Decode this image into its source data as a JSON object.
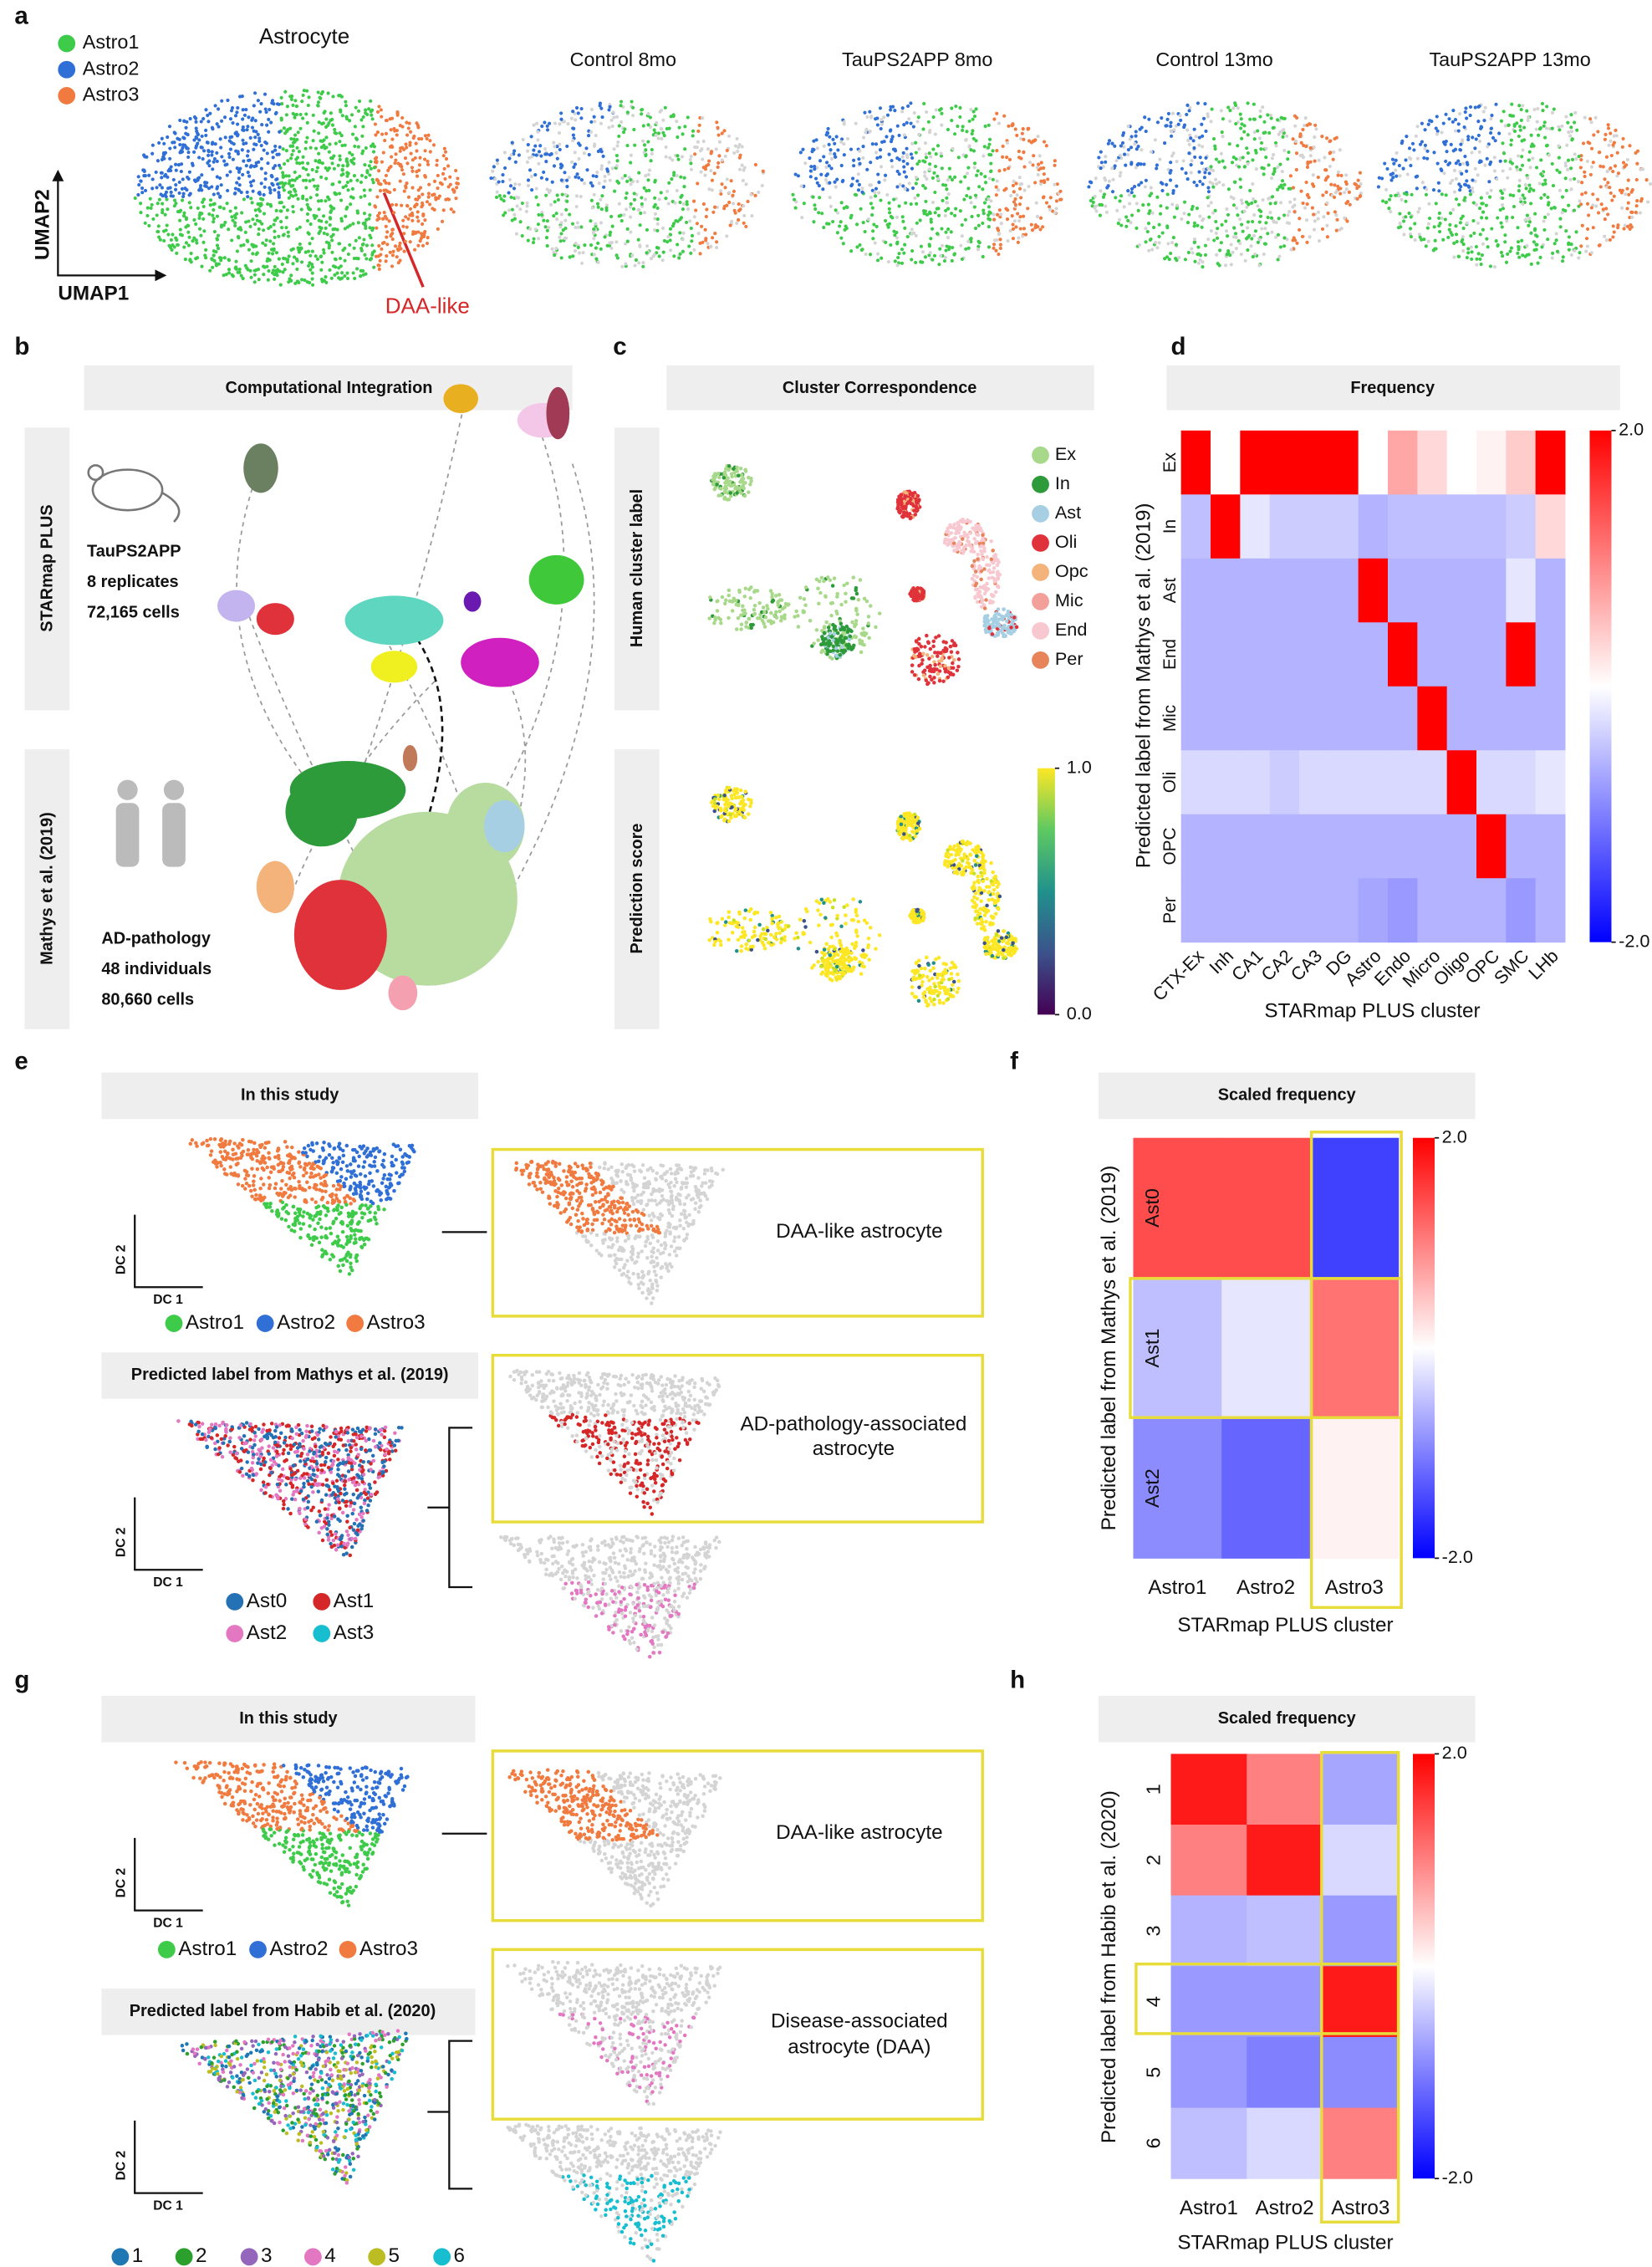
{
  "panels": {
    "a": {
      "letter": "a",
      "title": "Astrocyte",
      "legend": [
        {
          "name": "Astro1",
          "color": "#3ecb4a"
        },
        {
          "name": "Astro2",
          "color": "#2f6fd6"
        },
        {
          "name": "Astro3",
          "color": "#f07a3f"
        }
      ],
      "axis_x": "UMAP1",
      "axis_y": "UMAP2",
      "annotation": "DAA-like",
      "subplots": [
        "Control 8mo",
        "TauPS2APP 8mo",
        "Control 13mo",
        "TauPS2APP 13mo"
      ]
    },
    "b": {
      "letter": "b",
      "header": "Computational Integration",
      "side_labels": [
        "STARmap PLUS",
        "Mathys et al. (2019)"
      ],
      "mouse": [
        "TauPS2APP",
        "8 replicates",
        "72,165 cells"
      ],
      "human": [
        "AD-pathology",
        "48 individuals",
        "80,660 cells"
      ]
    },
    "c": {
      "letter": "c",
      "header": "Cluster Correspondence",
      "side_labels": [
        "Human cluster label",
        "Prediction score"
      ],
      "legend": [
        {
          "name": "Ex",
          "color": "#a8d98a"
        },
        {
          "name": "In",
          "color": "#2e9b3a"
        },
        {
          "name": "Ast",
          "color": "#a6cfe3"
        },
        {
          "name": "Oli",
          "color": "#e0323a"
        },
        {
          "name": "Opc",
          "color": "#f4b37a"
        },
        {
          "name": "Mic",
          "color": "#f4a09a"
        },
        {
          "name": "End",
          "color": "#f8c8d0"
        },
        {
          "name": "Per",
          "color": "#e8845a"
        }
      ],
      "colorbar_colors": [
        "#440154",
        "#3b528b",
        "#21918c",
        "#5ec962",
        "#fde725"
      ],
      "colorbar_ticks": [
        {
          "value": 1,
          "label": "1.0"
        },
        {
          "value": 0,
          "label": "0.0"
        }
      ]
    },
    "e": {
      "letter": "e",
      "header": "In this study",
      "header2": "Predicted label from Mathys et al. (2019)",
      "axis_x": "DC 1",
      "axis_y": "DC 2",
      "legend": [
        {
          "name": "Astro1",
          "color": "#3ecb4a"
        },
        {
          "name": "Astro2",
          "color": "#2f6fd6"
        },
        {
          "name": "Astro3",
          "color": "#f07a3f"
        }
      ],
      "legend2": [
        {
          "name": "Ast0",
          "color": "#2471b5"
        },
        {
          "name": "Ast1",
          "color": "#d62728"
        },
        {
          "name": "Ast2",
          "color": "#e377c2"
        },
        {
          "name": "Ast3",
          "color": "#17becf"
        }
      ],
      "box1": [
        "DAA-like astrocyte"
      ],
      "box2": [
        "AD-pathology-associated",
        "astrocyte"
      ]
    },
    "g": {
      "letter": "g",
      "header": "In this study",
      "header2": "Predicted label from Habib et al. (2020)",
      "axis_x": "DC 1",
      "axis_y": "DC 2",
      "legend": [
        {
          "name": "Astro1",
          "color": "#3ecb4a"
        },
        {
          "name": "Astro2",
          "color": "#2f6fd6"
        },
        {
          "name": "Astro3",
          "color": "#f07a3f"
        }
      ],
      "legend2": [
        {
          "name": "1",
          "color": "#1f77b4"
        },
        {
          "name": "2",
          "color": "#2ca02c"
        },
        {
          "name": "3",
          "color": "#9467bd"
        },
        {
          "name": "4",
          "color": "#e377c2"
        },
        {
          "name": "5",
          "color": "#bcbd22"
        },
        {
          "name": "6",
          "color": "#17becf"
        }
      ],
      "box1": [
        "DAA-like astrocyte"
      ],
      "box2": [
        "Disease-associated",
        "astrocyte (DAA)"
      ]
    }
  },
  "chart_data": [
    {
      "type": "heatmap",
      "letter": "d",
      "title": "Frequency",
      "x_label": "STARmap PLUS cluster",
      "y_label": "Predicted label from Mathys et al. (2019)",
      "categories": [
        "CTX-Ex",
        "Inh",
        "CA1",
        "CA2",
        "CA3",
        "DG",
        "Astro",
        "Endo",
        "Micro",
        "Oligo",
        "OPC",
        "SMC",
        "LHb"
      ],
      "rows": [
        "Ex",
        "In",
        "Ast",
        "End",
        "Mic",
        "Oli",
        "OPC",
        "Per"
      ],
      "values": [
        [
          2,
          0,
          2,
          2,
          2,
          2,
          0,
          0.7,
          0.3,
          0,
          0.1,
          0.4,
          2
        ],
        [
          -0.5,
          2,
          -0.2,
          -0.4,
          -0.4,
          -0.4,
          -0.6,
          -0.5,
          -0.5,
          -0.5,
          -0.5,
          -0.4,
          0.3
        ],
        [
          -0.6,
          -0.6,
          -0.6,
          -0.6,
          -0.6,
          -0.6,
          2,
          -0.6,
          -0.6,
          -0.6,
          -0.6,
          -0.2,
          -0.6
        ],
        [
          -0.6,
          -0.6,
          -0.6,
          -0.6,
          -0.6,
          -0.6,
          -0.6,
          2,
          -0.6,
          -0.6,
          -0.6,
          2,
          -0.6
        ],
        [
          -0.6,
          -0.6,
          -0.6,
          -0.6,
          -0.6,
          -0.6,
          -0.6,
          -0.6,
          2,
          -0.6,
          -0.6,
          -0.6,
          -0.6
        ],
        [
          -0.3,
          -0.3,
          -0.3,
          -0.4,
          -0.3,
          -0.3,
          -0.3,
          -0.3,
          -0.3,
          2,
          -0.3,
          -0.3,
          -0.2
        ],
        [
          -0.6,
          -0.6,
          -0.6,
          -0.6,
          -0.6,
          -0.6,
          -0.6,
          -0.6,
          -0.6,
          -0.6,
          2,
          -0.6,
          -0.6
        ],
        [
          -0.6,
          -0.6,
          -0.6,
          -0.6,
          -0.6,
          -0.6,
          -0.7,
          -0.8,
          -0.6,
          -0.6,
          -0.6,
          -0.8,
          -0.6
        ]
      ],
      "zlim": [
        -2,
        2
      ],
      "zticks": [
        {
          "value": 2,
          "label": "2.0"
        },
        {
          "value": -2,
          "label": "-2.0"
        }
      ],
      "colors": [
        "#0000ff",
        "#ffffff",
        "#ff0000"
      ]
    },
    {
      "type": "heatmap",
      "letter": "f",
      "title": "Scaled frequency",
      "x_label": "STARmap PLUS cluster",
      "y_label": "Predicted label from Mathys et al. (2019)",
      "categories": [
        "Astro1",
        "Astro2",
        "Astro3"
      ],
      "rows": [
        "Ast0",
        "Ast1",
        "Ast2"
      ],
      "values": [
        [
          1.4,
          1.4,
          -1.5
        ],
        [
          -0.5,
          -0.2,
          1.1
        ],
        [
          -0.9,
          -1.2,
          0.1
        ]
      ],
      "zlim": [
        -2,
        2
      ],
      "zticks": [
        {
          "value": 2,
          "label": "2.0"
        },
        {
          "value": -2,
          "label": "-2.0"
        }
      ],
      "colors": [
        "#0000ff",
        "#ffffff",
        "#ff0000"
      ]
    },
    {
      "type": "heatmap",
      "letter": "h",
      "title": "Scaled frequency",
      "x_label": "STARmap PLUS cluster",
      "y_label": "Predicted label from Habib et al. (2020)",
      "categories": [
        "Astro1",
        "Astro2",
        "Astro3"
      ],
      "rows": [
        "1",
        "2",
        "3",
        "4",
        "5",
        "6"
      ],
      "values": [
        [
          1.8,
          1.0,
          -0.7
        ],
        [
          1.0,
          1.8,
          -0.3
        ],
        [
          -0.6,
          -0.5,
          -0.8
        ],
        [
          -0.8,
          -0.8,
          1.8
        ],
        [
          -0.8,
          -1.0,
          -0.9
        ],
        [
          -0.5,
          -0.3,
          1.0
        ]
      ],
      "zlim": [
        -2,
        2
      ],
      "zticks": [
        {
          "value": 2,
          "label": "2.0"
        },
        {
          "value": -2,
          "label": "-2.0"
        }
      ],
      "colors": [
        "#0000ff",
        "#ffffff",
        "#ff0000"
      ]
    }
  ]
}
